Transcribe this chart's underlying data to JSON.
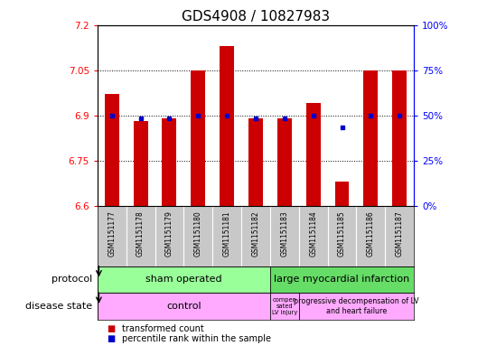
{
  "title": "GDS4908 / 10827983",
  "samples": [
    "GSM1151177",
    "GSM1151178",
    "GSM1151179",
    "GSM1151180",
    "GSM1151181",
    "GSM1151182",
    "GSM1151183",
    "GSM1151184",
    "GSM1151185",
    "GSM1151186",
    "GSM1151187"
  ],
  "bar_values": [
    6.97,
    6.88,
    6.89,
    7.05,
    7.13,
    6.89,
    6.89,
    6.94,
    6.68,
    7.05,
    7.05
  ],
  "dot_values": [
    6.9,
    6.89,
    6.89,
    6.9,
    6.9,
    6.89,
    6.89,
    6.9,
    6.86,
    6.9,
    6.9
  ],
  "ylim": [
    6.6,
    7.2
  ],
  "yticks_left": [
    6.6,
    6.75,
    6.9,
    7.05,
    7.2
  ],
  "yticks_right": [
    0,
    25,
    50,
    75,
    100
  ],
  "bar_color": "#cc0000",
  "dot_color": "#0000cc",
  "bar_bottom": 6.6,
  "grid_values": [
    6.75,
    6.9,
    7.05
  ],
  "title_fontsize": 11,
  "sham_color": "#99ff99",
  "infarction_color": "#66dd66",
  "disease_color": "#ffaaff",
  "sample_bg_color": "#c8c8c8",
  "legend_transformed": "transformed count",
  "legend_percentile": "percentile rank within the sample"
}
